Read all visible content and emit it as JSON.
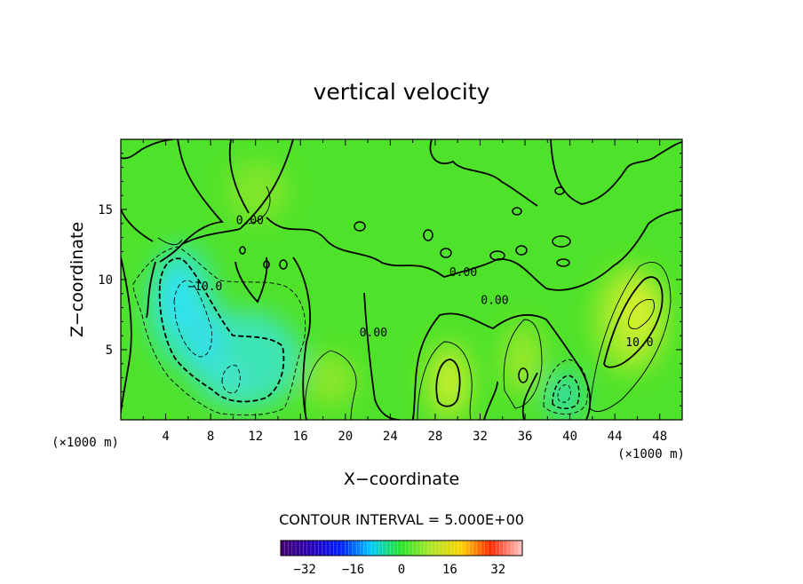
{
  "chart_data": {
    "type": "contour",
    "title": "vertical velocity",
    "xlabel": "X−coordinate",
    "ylabel": "Z−coordinate",
    "x_unit": "(×1000 m)",
    "y_unit": "(×1000 m)",
    "xlim": [
      0,
      50
    ],
    "ylim": [
      0,
      20
    ],
    "x_ticks": [
      4,
      8,
      12,
      16,
      20,
      24,
      28,
      32,
      36,
      40,
      44,
      48
    ],
    "y_ticks": [
      5,
      10,
      15
    ],
    "contour_interval_text": "CONTOUR INTERVAL = 5.000E+00",
    "colorbar": {
      "range": [
        -40,
        40
      ],
      "ticks": [
        -32,
        -16,
        0,
        16,
        32
      ],
      "tick_labels": [
        "−32",
        "−16",
        "0",
        "16",
        "32"
      ]
    },
    "contour_labels": [
      {
        "text": "0.00",
        "x": 11.5,
        "z": 14.2
      },
      {
        "text": "−10.0",
        "x": 7.5,
        "z": 9.5
      },
      {
        "text": "0.00",
        "x": 22.5,
        "z": 6.2
      },
      {
        "text": "0.00",
        "x": 30.5,
        "z": 10.5
      },
      {
        "text": "0.00",
        "x": 33.3,
        "z": 8.5
      },
      {
        "text": "10.0",
        "x": 46.2,
        "z": 5.5
      }
    ],
    "features": [
      {
        "kind": "min",
        "x": 7.5,
        "z": 7.0,
        "value": -20
      },
      {
        "kind": "min",
        "x": 10.0,
        "z": 3.0,
        "value": -15
      },
      {
        "kind": "min",
        "x": 39.5,
        "z": 2.0,
        "value": -10
      },
      {
        "kind": "max",
        "x": 29.5,
        "z": 3.0,
        "value": 12
      },
      {
        "kind": "max",
        "x": 35.5,
        "z": 3.5,
        "value": 8
      },
      {
        "kind": "max",
        "x": 46.5,
        "z": 7.5,
        "value": 14
      },
      {
        "kind": "max",
        "x": 19.0,
        "z": 3.0,
        "value": 5
      }
    ]
  }
}
